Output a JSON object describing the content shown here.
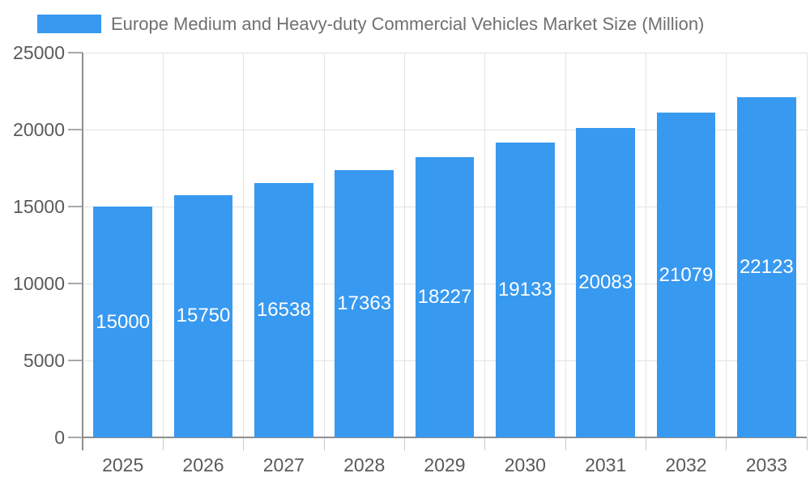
{
  "chart_data": {
    "type": "bar",
    "title": "Europe Medium and Heavy-duty Commercial Vehicles Market Size (Million)",
    "categories": [
      "2025",
      "2026",
      "2027",
      "2028",
      "2029",
      "2030",
      "2031",
      "2032",
      "2033"
    ],
    "values": [
      15000,
      15750,
      16538,
      17363,
      18227,
      19133,
      20083,
      21079,
      22123
    ],
    "xlabel": "",
    "ylabel": "",
    "ylim": [
      0,
      25000
    ],
    "yticks": [
      0,
      5000,
      10000,
      15000,
      20000,
      25000
    ],
    "grid": true,
    "legend_position": "top-left",
    "bar_color": "#3899F0",
    "value_label_color": "#FFFFFF"
  },
  "colors": {
    "background": "#FFFFFF",
    "gridline": "#E3E3E3",
    "axis_line": "#8F8F8F",
    "y_tick": "#A9A9A9",
    "x_tick": "#C9C9C9",
    "axis_label": "#5A5A5A",
    "title": "#707070"
  }
}
